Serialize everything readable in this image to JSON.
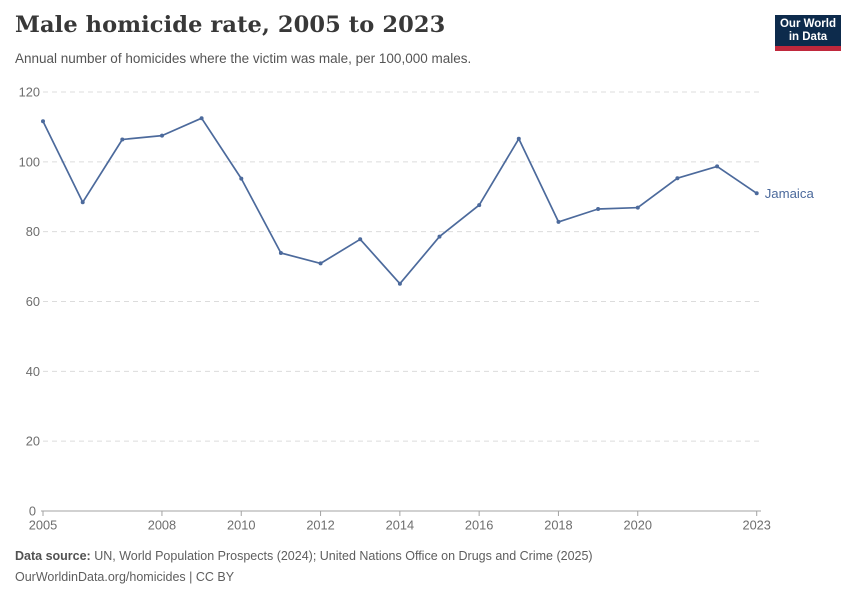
{
  "header": {
    "title": "Male homicide rate, 2005 to 2023",
    "subtitle": "Annual number of homicides where the victim was male, per 100,000 males."
  },
  "logo": {
    "line1": "Our World",
    "line2": "in Data",
    "bg_color": "#0d2b4c",
    "accent_color": "#c0283c"
  },
  "chart_data": {
    "type": "line",
    "title": "Male homicide rate, 2005 to 2023",
    "subtitle": "Annual number of homicides where the victim was male, per 100,000 males.",
    "x": [
      2005,
      2006,
      2007,
      2008,
      2009,
      2010,
      2011,
      2012,
      2013,
      2014,
      2015,
      2016,
      2017,
      2018,
      2019,
      2020,
      2021,
      2022,
      2023
    ],
    "series": [
      {
        "name": "Jamaica",
        "color": "#4c6a9c",
        "values": [
          111.6,
          88.4,
          106.4,
          107.5,
          112.5,
          95.2,
          73.9,
          70.9,
          77.8,
          65.1,
          78.6,
          87.6,
          106.6,
          82.8,
          86.5,
          86.9,
          95.3,
          98.7,
          91.0
        ]
      }
    ],
    "ylim": [
      0,
      120
    ],
    "yticks": [
      0,
      20,
      40,
      60,
      80,
      100,
      120
    ],
    "xtick_labels": [
      2005,
      2008,
      2010,
      2012,
      2014,
      2016,
      2018,
      2020,
      2023
    ],
    "grid": "horizontal-dashed",
    "legend": "line-end-label",
    "xlabel": "",
    "ylabel": ""
  },
  "colors": {
    "line": "#4c6a9c",
    "grid": "#dcdcdc",
    "axis": "#a3a3a3",
    "tick_text": "#6e6e6e"
  },
  "footer": {
    "source_label": "Data source:",
    "source_text": " UN, World Population Prospects (2024); United Nations Office on Drugs and Crime (2025)",
    "license_line": "OurWorldinData.org/homicides | CC BY"
  }
}
